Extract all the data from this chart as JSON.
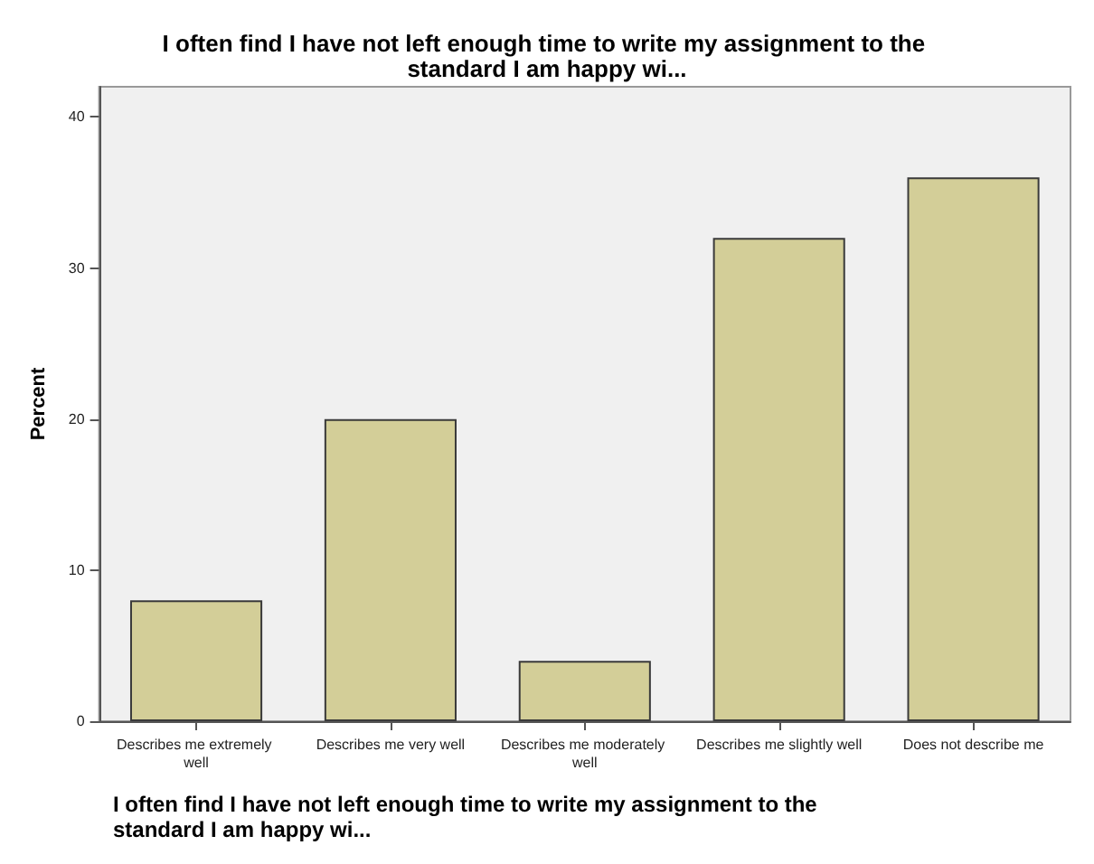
{
  "chart_data": {
    "type": "bar",
    "title": "I often find I have not left enough time to write my assignment to the standard I am happy wi...",
    "xlabel": "I often find I have not left enough time to write my assignment to the standard I am happy wi...",
    "ylabel": "Percent",
    "categories": [
      "Describes me extremely well",
      "Describes me very well",
      "Describes me moderately well",
      "Describes me slightly well",
      "Does not describe me"
    ],
    "values": [
      8,
      20,
      4,
      32,
      36
    ],
    "color": "#d3ce98",
    "ylim": [
      0,
      42
    ],
    "yticks": [
      0,
      10,
      20,
      30,
      40
    ],
    "grid": false
  }
}
